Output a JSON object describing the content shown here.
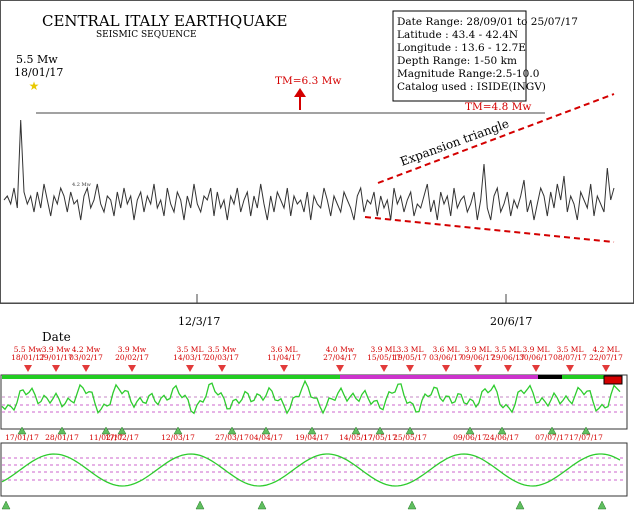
{
  "header": {
    "title": "CENTRAL ITALY EARTHQUAKE",
    "subtitle": "SEISMIC SEQUENCE"
  },
  "info_box": {
    "lines": [
      "Date Range: 28/09/01 to 25/07/17",
      "Latitude : 43.4 - 42.4N",
      "Longitude : 13.6 - 12.7E",
      "Depth Range: 1-50 km",
      "Magnitude Range:2.5-10.0",
      "Catalog used : ISIDE(INGV)"
    ]
  },
  "annotations": {
    "peak_mag": "5.5 Mw",
    "peak_date": "18/01/17",
    "tm_upper": "TM=6.3 Mw",
    "tm_lower": "TM=4.8 Mw",
    "expansion": "Expansion triangle",
    "trace_value": "4.2 Mw"
  },
  "colors": {
    "trace": "#333333",
    "red": "#d40000",
    "green": "#2ecc2e",
    "magenta": "#cc33cc",
    "upper_band": "#22cc22",
    "black_band": "#000000",
    "up_marker": "#5fbf5f",
    "down_marker": "#e23a3a",
    "star": "#e8c800"
  },
  "chart_data": {
    "type": "line",
    "x_ticks": [
      "12/3/17",
      "20/6/17"
    ],
    "panel2_label": "Date",
    "panel2_top_labels": [
      {
        "mag": "5.5 Mw",
        "date": "18/01/17"
      },
      {
        "mag": "3.9 Mw",
        "date": "29/01/17"
      },
      {
        "mag": "4.2 Mw",
        "date": "03/02/17"
      },
      {
        "mag": "3.9 Mw",
        "date": "20/02/17"
      },
      {
        "mag": "3.5 ML",
        "date": "14/03/17"
      },
      {
        "mag": "3.5 Mw",
        "date": "20/03/17"
      },
      {
        "mag": "3.6 ML",
        "date": "11/04/17"
      },
      {
        "mag": "4.0 Mw",
        "date": "27/04/17"
      },
      {
        "mag": "3.9 ML",
        "date": "15/05/17"
      },
      {
        "mag": "3.3 ML",
        "date": "19/05/17"
      },
      {
        "mag": "3.6 ML",
        "date": "03/06/17"
      },
      {
        "mag": "3.9 ML",
        "date": "09/06/17"
      },
      {
        "mag": "3.5 ML",
        "date": "29/06/17"
      },
      {
        "mag": "3.9 ML",
        "date": "30/06/17"
      },
      {
        "mag": "3.5 ML",
        "date": "08/07/17"
      },
      {
        "mag": "4.2 ML",
        "date": "22/07/17"
      }
    ],
    "panel2_bottom_labels": [
      "17/01/17",
      "28/01/17",
      "11/02/17",
      "17/02/17",
      "12/03/17",
      "27/03/17",
      "04/04/17",
      "19/04/17",
      "14/05/17",
      "17/05/17",
      "25/05/17",
      "09/06/17",
      "24/06/17",
      "07/07/17",
      "17/07/17"
    ],
    "magnitude_series": [
      3.5,
      3.6,
      3.4,
      3.8,
      3.3,
      5.5,
      3.7,
      3.4,
      3.6,
      3.2,
      3.7,
      3.3,
      3.9,
      3.5,
      3.1,
      3.6,
      3.4,
      3.8,
      3.6,
      3.2,
      3.7,
      3.4,
      3.5,
      3.0,
      3.6,
      3.8,
      3.3,
      3.5,
      3.9,
      3.4,
      3.2,
      3.6,
      3.5,
      3.1,
      3.7,
      3.3,
      3.8,
      3.4,
      3.6,
      3.0,
      3.5,
      3.7,
      3.2,
      3.6,
      3.4,
      3.9,
      3.3,
      3.5,
      3.1,
      3.8,
      3.4,
      3.2,
      3.7,
      3.5,
      3.0,
      3.6,
      3.3,
      3.9,
      3.4,
      3.2,
      3.6,
      3.5,
      3.8,
      3.1,
      3.7,
      3.3,
      3.5,
      3.0,
      3.6,
      3.4,
      3.8,
      3.2,
      3.5,
      3.7,
      3.1,
      3.6,
      3.3,
      3.9,
      3.4,
      3.0,
      3.6,
      3.2,
      3.7,
      3.5,
      3.3,
      3.8,
      3.1,
      3.6,
      3.4,
      3.5,
      3.2,
      3.7,
      3.0,
      3.6,
      3.4,
      3.3,
      3.8,
      3.5,
      3.1,
      3.6,
      3.4,
      3.2,
      3.7,
      3.5,
      3.3,
      3.0,
      3.6,
      3.8,
      3.2,
      3.5,
      3.4,
      3.7,
      3.1,
      3.6,
      3.3,
      3.5,
      3.0,
      3.8,
      3.4,
      3.6,
      3.2,
      3.5,
      3.7,
      3.1,
      3.4,
      3.3,
      3.6,
      3.9,
      3.2,
      3.5,
      3.0,
      3.7,
      3.4,
      3.6,
      3.1,
      3.8,
      3.3,
      3.5,
      3.6,
      3.2,
      3.4,
      3.7,
      3.0,
      3.5,
      4.4,
      3.3,
      3.0,
      3.6,
      3.8,
      3.2,
      3.4,
      3.7,
      3.1,
      3.5,
      3.3,
      3.6,
      4.0,
      3.2,
      3.5,
      3.0,
      3.4,
      3.8,
      3.6,
      3.1,
      3.7,
      3.3,
      3.9,
      3.5,
      4.1,
      3.2,
      3.6,
      3.4,
      3.0,
      3.7,
      3.5,
      3.3,
      3.9,
      3.1,
      3.6,
      3.4,
      3.2,
      4.3,
      3.5,
      3.8
    ],
    "ylim": [
      2.5,
      6.3
    ],
    "levels": {
      "tm_upper": 6.3,
      "tm_lower": 4.8
    }
  }
}
